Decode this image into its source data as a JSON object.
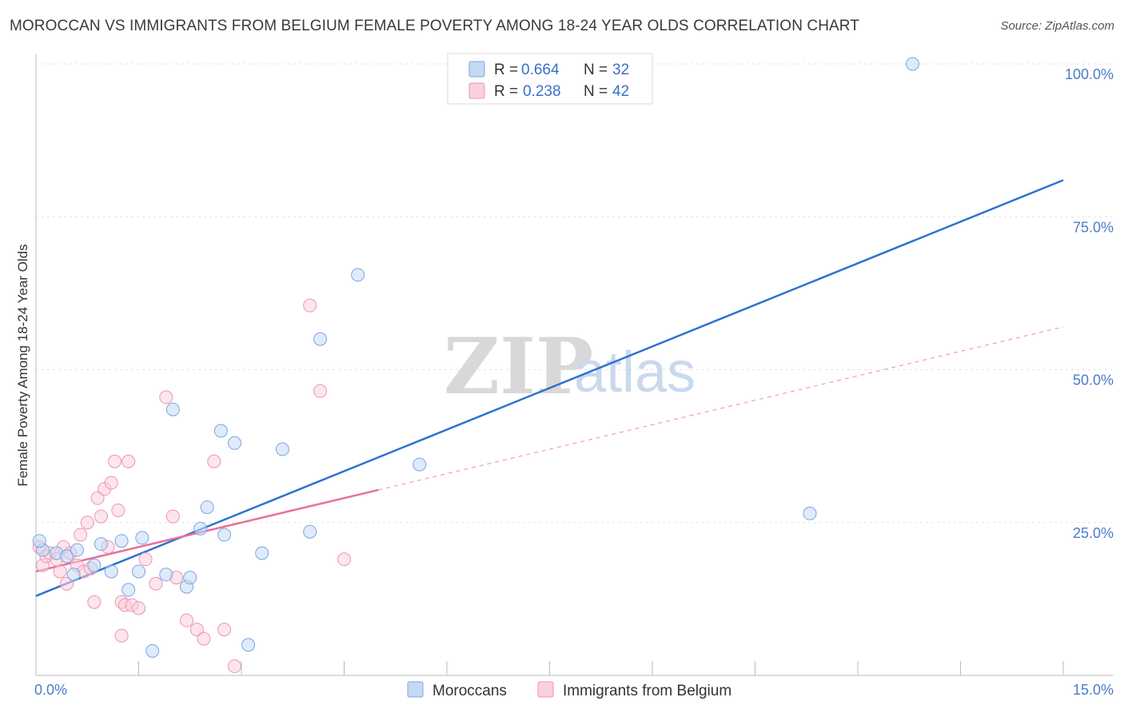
{
  "header": {
    "title": "MOROCCAN VS IMMIGRANTS FROM BELGIUM FEMALE POVERTY AMONG 18-24 YEAR OLDS CORRELATION CHART",
    "source": "Source: ZipAtlas.com"
  },
  "watermark": {
    "zip": "ZIP",
    "atlas": "atlas"
  },
  "legend_top": {
    "rows": [
      {
        "r_label": "R =",
        "r_value": "0.664",
        "n_label": "N =",
        "n_value": "32"
      },
      {
        "r_label": "R =",
        "r_value": "0.238",
        "n_label": "N =",
        "n_value": "42"
      }
    ]
  },
  "legend_bottom": {
    "items": [
      "Moroccans",
      "Immigrants from Belgium"
    ]
  },
  "colors": {
    "moroccans_fill": "#c5d9f5",
    "moroccans_stroke": "#7aa6e0",
    "moroccans_line": "#2f72d0",
    "belgium_fill": "#fad0dc",
    "belgium_stroke": "#ee94b0",
    "belgium_line": "#e8709a",
    "tick_color": "#4a7cc9"
  },
  "chart_data": {
    "type": "scatter",
    "title": "MOROCCAN VS IMMIGRANTS FROM BELGIUM FEMALE POVERTY AMONG 18-24 YEAR OLDS CORRELATION CHART",
    "xlabel": "",
    "ylabel": "Female Poverty Among 18-24 Year Olds",
    "xlim": [
      0,
      15
    ],
    "ylim": [
      0,
      100
    ],
    "x_tick_labels": [
      "0.0%",
      "15.0%"
    ],
    "y_tick_labels": [
      "25.0%",
      "50.0%",
      "75.0%",
      "100.0%"
    ],
    "y_ticks": [
      25,
      50,
      75,
      100
    ],
    "x_minor_ticks": [
      0,
      1.5,
      3,
      4.5,
      6,
      7.5,
      9,
      10.5,
      12,
      13.5,
      15
    ],
    "series": [
      {
        "name": "Moroccans",
        "r": 0.664,
        "n": 32,
        "trend": {
          "x": [
            0,
            15
          ],
          "y": [
            13,
            81
          ]
        },
        "points": [
          [
            0.1,
            20.5
          ],
          [
            0.3,
            20
          ],
          [
            0.45,
            19.5
          ],
          [
            0.55,
            16.5
          ],
          [
            0.85,
            18
          ],
          [
            0.95,
            21.5
          ],
          [
            1.1,
            17
          ],
          [
            1.25,
            22
          ],
          [
            1.35,
            14
          ],
          [
            1.5,
            17
          ],
          [
            1.55,
            22.5
          ],
          [
            1.7,
            4
          ],
          [
            1.9,
            16.5
          ],
          [
            2.0,
            43.5
          ],
          [
            2.2,
            14.5
          ],
          [
            2.25,
            16
          ],
          [
            2.4,
            24
          ],
          [
            2.5,
            27.5
          ],
          [
            2.7,
            40
          ],
          [
            2.75,
            23
          ],
          [
            2.9,
            38
          ],
          [
            3.1,
            5
          ],
          [
            3.3,
            20
          ],
          [
            3.6,
            37
          ],
          [
            4.0,
            23.5
          ],
          [
            4.15,
            55
          ],
          [
            4.7,
            65.5
          ],
          [
            5.6,
            34.5
          ],
          [
            11.3,
            26.5
          ],
          [
            12.8,
            100
          ],
          [
            0.6,
            20.5
          ],
          [
            0.05,
            22
          ]
        ]
      },
      {
        "name": "Immigrants from Belgium",
        "r": 0.238,
        "n": 42,
        "trend": {
          "x": [
            0,
            15
          ],
          "y": [
            17,
            57
          ]
        },
        "trend_solid_to_x": 5.0,
        "points": [
          [
            0.05,
            21
          ],
          [
            0.1,
            18
          ],
          [
            0.15,
            19.5
          ],
          [
            0.2,
            20
          ],
          [
            0.3,
            19
          ],
          [
            0.35,
            17
          ],
          [
            0.4,
            21
          ],
          [
            0.45,
            15
          ],
          [
            0.5,
            20
          ],
          [
            0.6,
            18
          ],
          [
            0.65,
            23
          ],
          [
            0.7,
            17
          ],
          [
            0.75,
            25
          ],
          [
            0.8,
            17.5
          ],
          [
            0.9,
            29
          ],
          [
            0.95,
            26
          ],
          [
            1.0,
            30.5
          ],
          [
            1.05,
            21
          ],
          [
            1.1,
            31.5
          ],
          [
            1.15,
            35
          ],
          [
            1.2,
            27
          ],
          [
            1.25,
            12
          ],
          [
            1.3,
            11.5
          ],
          [
            1.35,
            35
          ],
          [
            1.4,
            11.5
          ],
          [
            1.5,
            11
          ],
          [
            1.6,
            19
          ],
          [
            1.75,
            15
          ],
          [
            1.9,
            45.5
          ],
          [
            2.0,
            26
          ],
          [
            2.05,
            16
          ],
          [
            2.2,
            9
          ],
          [
            2.35,
            7.5
          ],
          [
            2.45,
            6
          ],
          [
            2.6,
            35
          ],
          [
            2.75,
            7.5
          ],
          [
            2.9,
            1.5
          ],
          [
            4.0,
            60.5
          ],
          [
            4.15,
            46.5
          ],
          [
            4.5,
            19
          ],
          [
            0.85,
            12
          ],
          [
            1.25,
            6.5
          ]
        ]
      }
    ]
  }
}
